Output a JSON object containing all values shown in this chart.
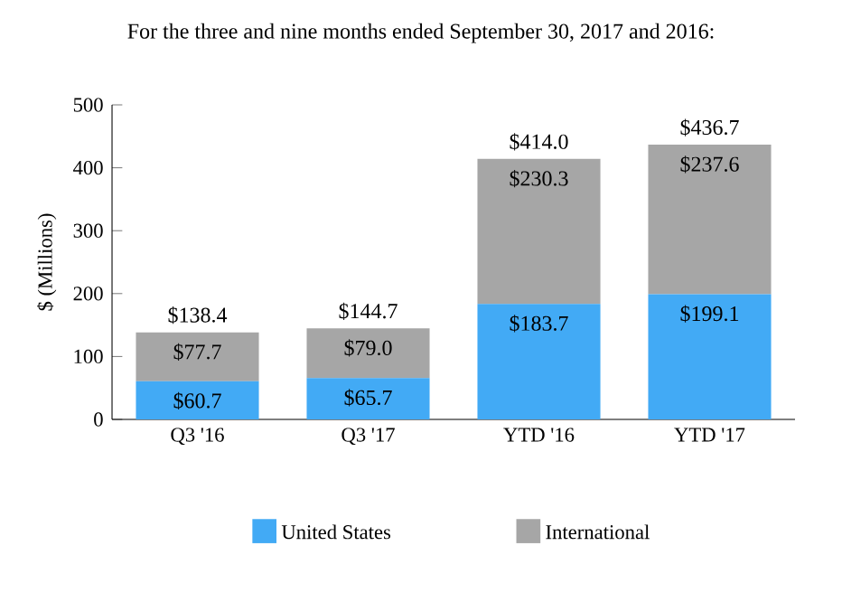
{
  "chart_data": {
    "type": "bar",
    "stacked": true,
    "title": "For the three and nine months ended September 30, 2017 and 2016:",
    "ylabel": "$ (Millions)",
    "categories": [
      "Q3 '16",
      "Q3 '17",
      "YTD '16",
      "YTD '17"
    ],
    "series": [
      {
        "name": "United States",
        "color": "#42aaf5",
        "values": [
          60.7,
          65.7,
          183.7,
          199.1
        ],
        "value_labels": [
          "$60.7",
          "$65.7",
          "$183.7",
          "$199.1"
        ]
      },
      {
        "name": "International",
        "color": "#a6a6a6",
        "values": [
          77.7,
          79.0,
          230.3,
          237.6
        ],
        "value_labels": [
          "$77.7",
          "$79.0",
          "$230.3",
          "$237.6"
        ]
      }
    ],
    "totals": [
      "$138.4",
      "$144.7",
      "$414.0",
      "$436.7"
    ],
    "ylim": [
      0,
      500
    ],
    "yticks": [
      0,
      100,
      200,
      300,
      400,
      500
    ],
    "legend": "bottom"
  }
}
